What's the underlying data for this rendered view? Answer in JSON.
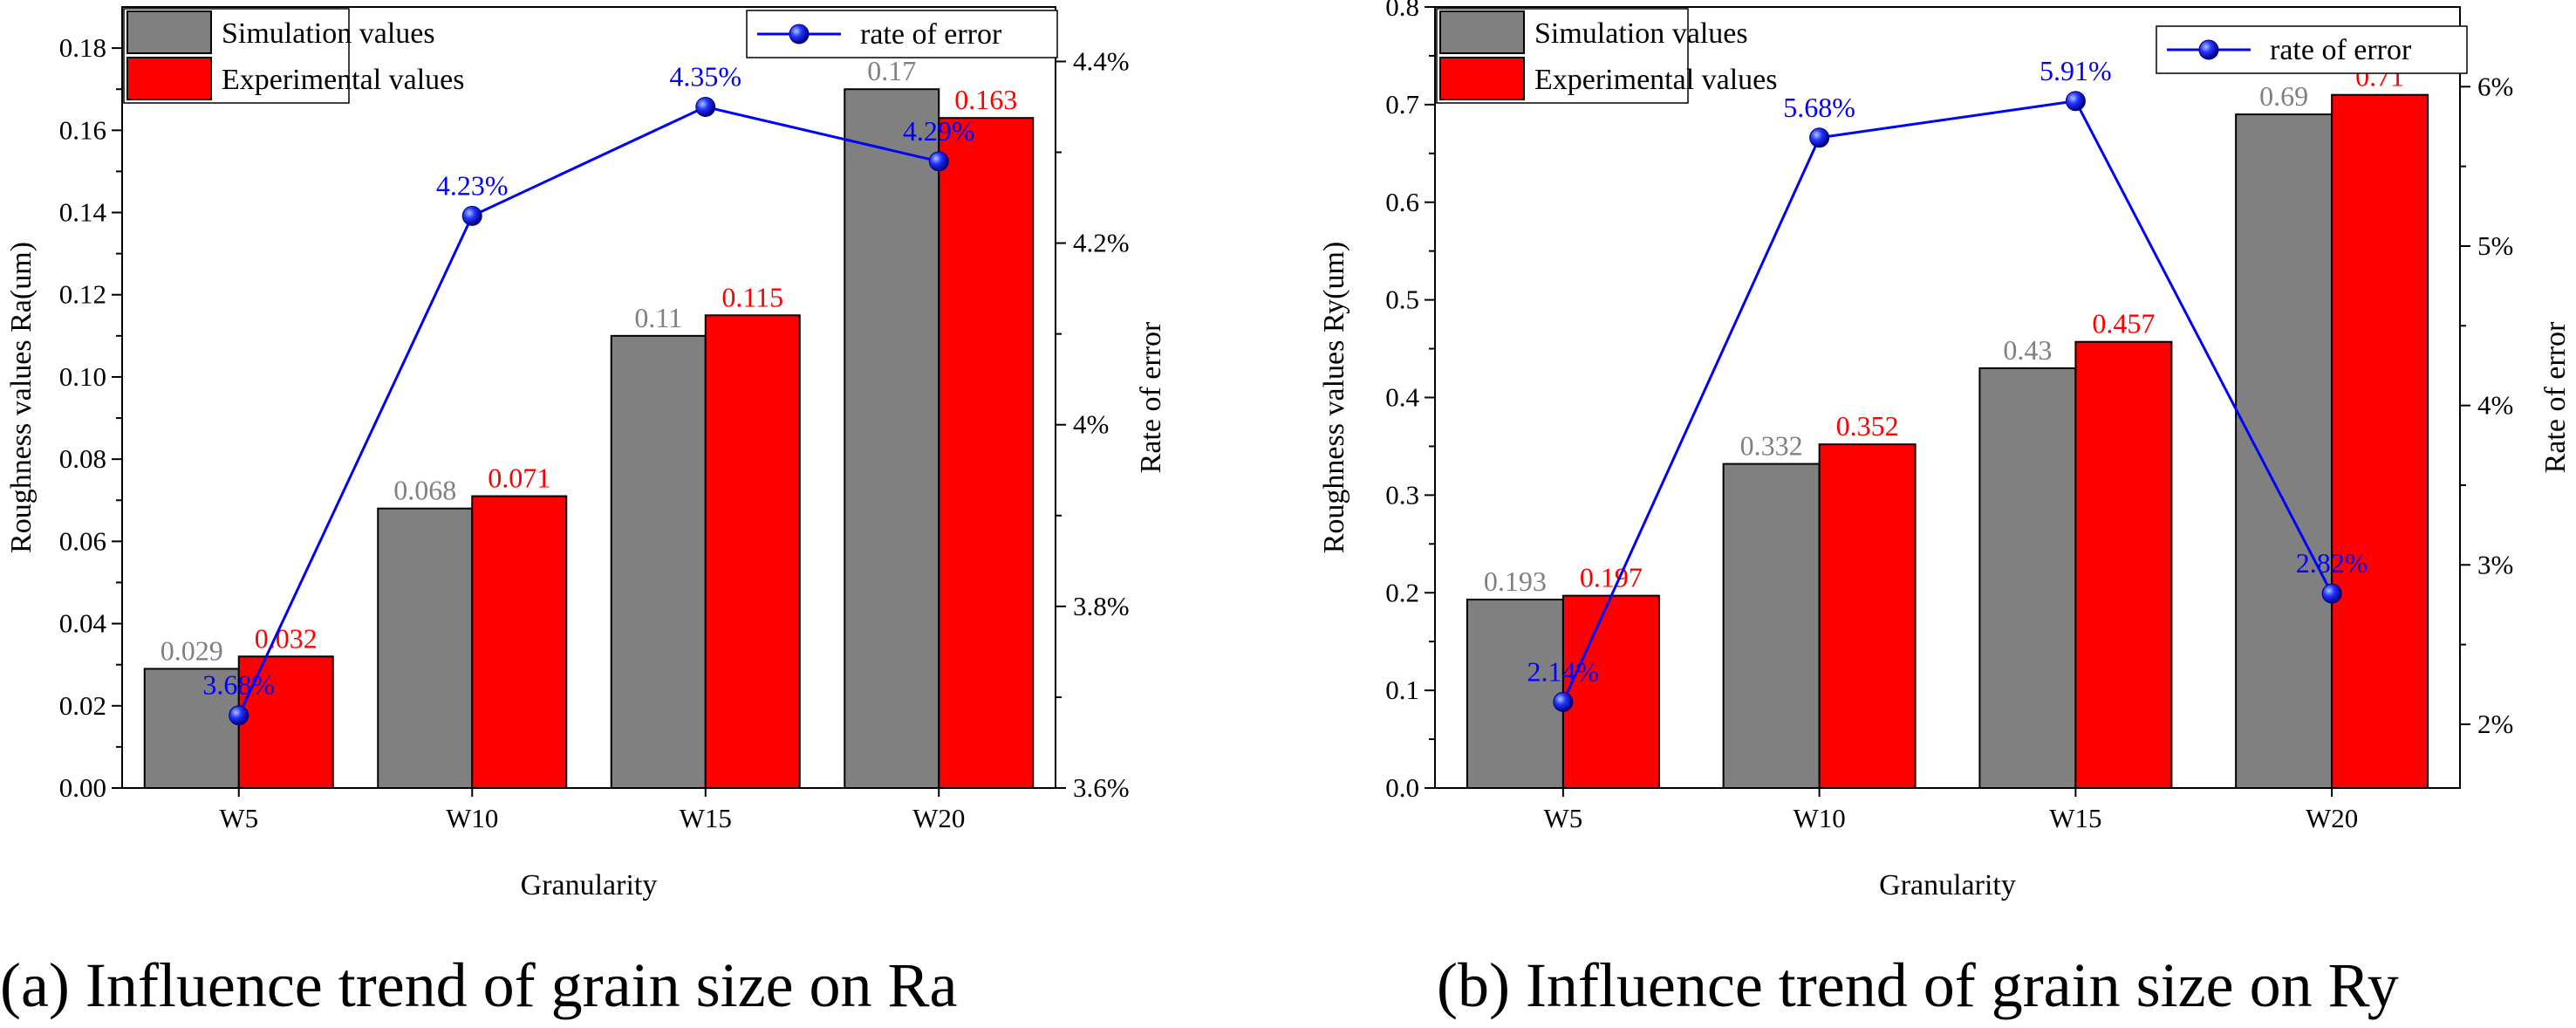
{
  "figure": {
    "captions": [
      "(a) Influence trend of grain size on Ra",
      "(b) Influence trend of grain size on Ry"
    ]
  },
  "colors": {
    "simulation_bar": "#808080",
    "experimental_bar": "#ff0000",
    "error_line": "#0000ff",
    "simulation_label": "#808080",
    "experimental_label": "#ff0000",
    "error_label": "#0000ff"
  },
  "chart_data": [
    {
      "type": "bar",
      "caption": "(a) Influence trend of grain size on Ra",
      "categories": [
        "W5",
        "W10",
        "W15",
        "W20"
      ],
      "xlabel": "Granularity",
      "ylabel": "Roughness values Ra(um)",
      "y2label": "Rate of error",
      "ylim": [
        0,
        0.19
      ],
      "yticks": [
        0.0,
        0.02,
        0.04,
        0.06,
        0.08,
        0.1,
        0.12,
        0.14,
        0.16,
        0.18
      ],
      "ytick_labels": [
        "0.00",
        "0.02",
        "0.04",
        "0.06",
        "0.08",
        "0.10",
        "0.12",
        "0.14",
        "0.16",
        "0.18"
      ],
      "y2lim": [
        3.6,
        4.46
      ],
      "y2ticks": [
        3.6,
        3.8,
        4.0,
        4.2,
        4.4
      ],
      "y2tick_labels": [
        "3.6%",
        "3.8%",
        "4%",
        "4.2%",
        "4.4%"
      ],
      "series": [
        {
          "name": "Simulation values",
          "kind": "bar",
          "values": [
            0.029,
            0.068,
            0.11,
            0.17
          ],
          "labels": [
            "0.029",
            "0.068",
            "0.11",
            "0.17"
          ]
        },
        {
          "name": "Experimental values",
          "kind": "bar",
          "values": [
            0.032,
            0.071,
            0.115,
            0.163
          ],
          "labels": [
            "0.032",
            "0.071",
            "0.115",
            "0.163"
          ]
        },
        {
          "name": "rate of error",
          "kind": "line",
          "axis": "right",
          "values": [
            3.68,
            4.23,
            4.35,
            4.29
          ],
          "labels": [
            "3.68%",
            "4.23%",
            "4.35%",
            "4.29%"
          ]
        }
      ],
      "legend": {
        "bars": "top-left",
        "line": "top-right"
      },
      "grid": false
    },
    {
      "type": "bar",
      "caption": "(b) Influence trend of grain size on Ry",
      "categories": [
        "W5",
        "W10",
        "W15",
        "W20"
      ],
      "xlabel": "Granularity",
      "ylabel": "Roughness values Ry(um)",
      "y2label": "Rate of error",
      "ylim": [
        0,
        0.8
      ],
      "yticks": [
        0.0,
        0.1,
        0.2,
        0.3,
        0.4,
        0.5,
        0.6,
        0.7,
        0.8
      ],
      "ytick_labels": [
        "0.0",
        "0.1",
        "0.2",
        "0.3",
        "0.4",
        "0.5",
        "0.6",
        "0.7",
        "0.8"
      ],
      "y2lim": [
        1.6,
        6.5
      ],
      "y2ticks": [
        2,
        3,
        4,
        5,
        6
      ],
      "y2tick_labels": [
        "2%",
        "3%",
        "4%",
        "5%",
        "6%"
      ],
      "series": [
        {
          "name": "Simulation values",
          "kind": "bar",
          "values": [
            0.193,
            0.332,
            0.43,
            0.69
          ],
          "labels": [
            "0.193",
            "0.332",
            "0.43",
            "0.69"
          ]
        },
        {
          "name": "Experimental values",
          "kind": "bar",
          "values": [
            0.197,
            0.352,
            0.457,
            0.71
          ],
          "labels": [
            "0.197",
            "0.352",
            "0.457",
            "0.71"
          ]
        },
        {
          "name": "rate of error",
          "kind": "line",
          "axis": "right",
          "values": [
            2.14,
            5.68,
            5.91,
            2.82
          ],
          "labels": [
            "2.14%",
            "5.68%",
            "5.91%",
            "2.82%"
          ]
        }
      ],
      "legend": {
        "bars": "top-left",
        "line": "top-right"
      },
      "grid": false
    }
  ]
}
